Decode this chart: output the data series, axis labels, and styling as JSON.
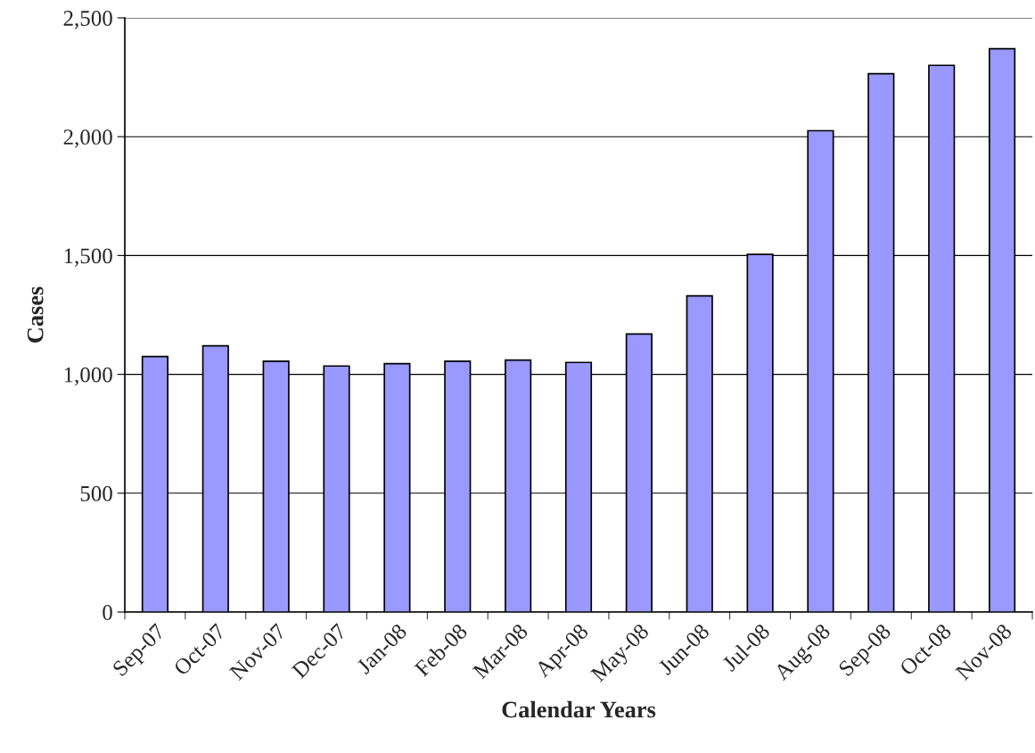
{
  "chart_data": {
    "type": "bar",
    "xlabel": "Calendar Years",
    "ylabel": "Cases",
    "categories": [
      "Sep-07",
      "Oct-07",
      "Nov-07",
      "Dec-07",
      "Jan-08",
      "Feb-08",
      "Mar-08",
      "Apr-08",
      "May-08",
      "Jun-08",
      "Jul-08",
      "Aug-08",
      "Sep-08",
      "Oct-08",
      "Nov-08"
    ],
    "values": [
      1075,
      1120,
      1055,
      1035,
      1045,
      1055,
      1060,
      1050,
      1170,
      1330,
      1505,
      2025,
      2265,
      2300,
      2370
    ],
    "color": "#9999ff",
    "ylim": [
      0,
      2500
    ],
    "yticks": [
      0,
      500,
      {
        "value": 1000,
        "label": "1,000"
      },
      {
        "value": 1500,
        "label": "1,500"
      },
      {
        "value": 2000,
        "label": "2,000"
      },
      {
        "value": 2500,
        "label": "2,500"
      }
    ],
    "grid": "y"
  }
}
